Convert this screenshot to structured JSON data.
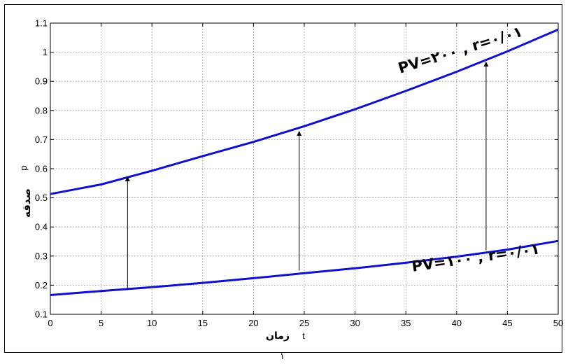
{
  "page": {
    "number": "۱"
  },
  "chart_data": {
    "type": "line",
    "xlabel_fa": "زمان",
    "xlabel_symbol": "t",
    "ylabel_fa": "صدقه",
    "ylabel_symbol": "p",
    "xlim": [
      0,
      50
    ],
    "ylim": [
      0.1,
      1.1
    ],
    "grid": true,
    "x_ticks": [
      "0",
      "5",
      "10",
      "15",
      "20",
      "25",
      "30",
      "35",
      "40",
      "45",
      "50"
    ],
    "y_ticks": [
      "0.1",
      "0.2",
      "0.3",
      "0.4",
      "0.5",
      "0.6",
      "0.7",
      "0.8",
      "0.9",
      "1",
      "1.1"
    ],
    "x": [
      0,
      5,
      10,
      15,
      20,
      25,
      30,
      35,
      40,
      45,
      50
    ],
    "series": [
      {
        "label": "PV=۲۰۰ , r=۰/۰۱",
        "color": "#1010cc",
        "values": [
          0.513,
          0.546,
          0.593,
          0.643,
          0.692,
          0.746,
          0.804,
          0.867,
          0.933,
          1.003,
          1.078
        ]
      },
      {
        "label": "PV=۱۰۰ , r=۰/۰۱",
        "color": "#1010cc",
        "values": [
          0.166,
          0.18,
          0.193,
          0.208,
          0.224,
          0.241,
          0.258,
          0.277,
          0.298,
          0.322,
          0.352
        ]
      }
    ],
    "annotations": [
      {
        "type": "arrow",
        "x": 7.6,
        "from_y": 0.19,
        "to_y": 0.572
      },
      {
        "type": "arrow",
        "x": 24.5,
        "from_y": 0.25,
        "to_y": 0.728
      },
      {
        "type": "arrow",
        "x": 42.9,
        "from_y": 0.32,
        "to_y": 0.966
      }
    ]
  }
}
